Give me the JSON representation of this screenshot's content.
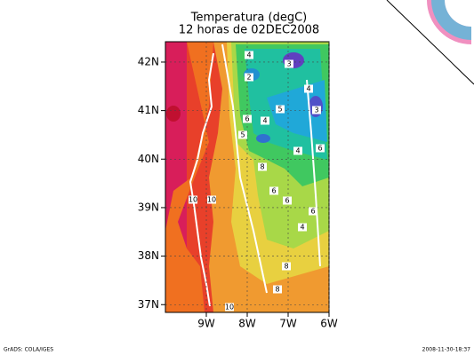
{
  "map": {
    "title": "Temperatura (degC)",
    "subtitle": "12 horas de 02DEC2008",
    "xlim": [
      -10,
      -6
    ],
    "ylim": [
      36.84,
      42.42
    ],
    "yticks": [
      {
        "value": 37,
        "label": "37N"
      },
      {
        "value": 38,
        "label": "38N"
      },
      {
        "value": 39,
        "label": "39N"
      },
      {
        "value": 40,
        "label": "40N"
      },
      {
        "value": 41,
        "label": "41N"
      },
      {
        "value": 42,
        "label": "42N"
      }
    ],
    "xticks": [
      {
        "value": -9,
        "label": "9W"
      },
      {
        "value": -8,
        "label": "8W"
      },
      {
        "value": -7,
        "label": "7W"
      },
      {
        "value": -6,
        "label": "6W"
      }
    ],
    "contour_labels": [
      "4",
      "2",
      "3",
      "5",
      "6",
      "4",
      "5",
      "4",
      "3",
      "4",
      "6",
      "8",
      "6",
      "6",
      "10",
      "10",
      "6",
      "4",
      "8",
      "8",
      "10"
    ],
    "footer_left": "GrADS: COLA/IGES",
    "footer_right": "2008-11-30-18:37"
  }
}
